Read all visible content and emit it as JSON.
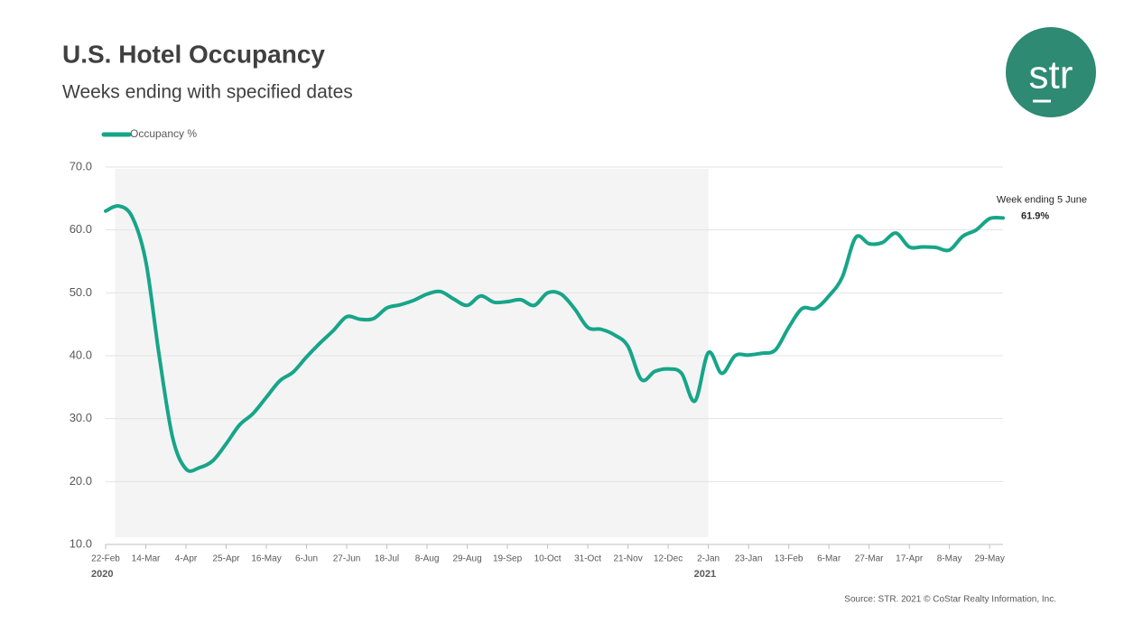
{
  "chart_data": {
    "type": "line",
    "title": "U.S. Hotel Occupancy",
    "subtitle": "Weeks ending with specified dates",
    "logo": "str",
    "source": "Source: STR. 2021 © CoStar Realty Information, Inc.",
    "annotation": "Week ending 5 June",
    "year_labels": [
      "2020",
      "2021"
    ],
    "categories": [
      "22-Feb",
      null,
      null,
      "14-Mar",
      null,
      null,
      "4-Apr",
      null,
      null,
      "25-Apr",
      null,
      null,
      "16-May",
      null,
      null,
      "6-Jun",
      null,
      null,
      "27-Jun",
      null,
      null,
      "18-Jul",
      null,
      null,
      "8-Aug",
      null,
      null,
      "29-Aug",
      null,
      null,
      "19-Sep",
      null,
      null,
      "10-Oct",
      null,
      null,
      "31-Oct",
      null,
      null,
      "21-Nov",
      null,
      null,
      "12-Dec",
      null,
      null,
      "2-Jan",
      null,
      null,
      "23-Jan",
      null,
      null,
      "13-Feb",
      null,
      null,
      "6-Mar",
      null,
      null,
      "27-Mar",
      null,
      null,
      "17-Apr",
      null,
      null,
      "8-May",
      null,
      null,
      "29-May",
      null
    ],
    "series": [
      {
        "name": "Occupancy %",
        "color": "#17a589",
        "values": [
          63.0,
          63.8,
          62.0,
          55.0,
          40.0,
          27.0,
          22.0,
          22.2,
          23.3,
          26.0,
          29.0,
          30.8,
          33.4,
          36.0,
          37.4,
          39.8,
          42.0,
          44.0,
          46.2,
          45.8,
          45.9,
          47.6,
          48.1,
          48.8,
          49.8,
          50.2,
          49.0,
          48.0,
          49.5,
          48.5,
          48.6,
          48.9,
          48.0,
          50.0,
          49.8,
          47.5,
          44.5,
          44.2,
          43.3,
          41.5,
          36.2,
          37.5,
          37.9,
          37.2,
          32.8,
          40.5,
          37.2,
          40.0,
          40.1,
          40.4,
          40.9,
          44.5,
          47.5,
          47.5,
          49.5,
          52.5,
          58.8,
          57.8,
          58.0,
          59.5,
          57.3,
          57.3,
          57.2,
          56.8,
          59.0,
          60.0,
          61.8,
          61.9
        ],
        "value_labels": [
          null,
          null,
          null,
          null,
          null,
          null,
          null,
          null,
          null,
          null,
          null,
          null,
          null,
          null,
          null,
          null,
          null,
          null,
          null,
          null,
          null,
          null,
          null,
          null,
          null,
          null,
          null,
          null,
          null,
          null,
          null,
          null,
          null,
          null,
          null,
          null,
          null,
          null,
          null,
          null,
          null,
          null,
          null,
          null,
          null,
          null,
          null,
          null,
          null,
          null,
          null,
          null,
          null,
          null,
          null,
          null,
          null,
          null,
          null,
          null,
          null,
          null,
          null,
          null,
          null,
          null,
          null,
          "61.9%"
        ]
      }
    ],
    "ylim": [
      10,
      70
    ],
    "yticks": [
      {
        "value": 10,
        "label": "10.0"
      },
      {
        "value": 20,
        "label": "20.0"
      },
      {
        "value": 30,
        "label": "30.0"
      },
      {
        "value": 40,
        "label": "40.0"
      },
      {
        "value": 50,
        "label": "50.0"
      },
      {
        "value": 60,
        "label": "60.0"
      },
      {
        "value": 70,
        "label": "70.0"
      }
    ],
    "grid": true
  }
}
